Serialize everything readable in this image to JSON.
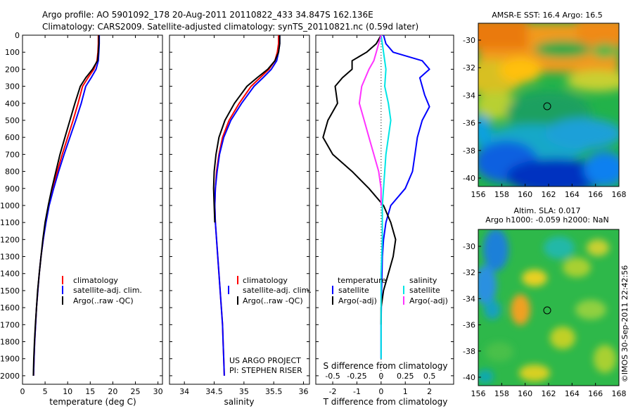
{
  "header": {
    "line1": "Argo profile: AO 5901092_178 20-Aug-2011 20110822_433 34.847S 162.136E",
    "line2": "Climatology: CARS2009. Satellite-adjusted climatology: synTS_20110821.nc (0.59d later)"
  },
  "colors": {
    "climatology": "#ff0000",
    "satellite": "#0000ff",
    "argo": "#000000",
    "salinity_sat": "#00e5e5",
    "salinity_argo": "#ff33ff"
  },
  "chart_data": [
    {
      "type": "line",
      "panel": "temperature",
      "xlabel": "temperature (deg C)",
      "xlim": [
        0,
        31
      ],
      "xticks": [
        0,
        5,
        10,
        15,
        20,
        25,
        30
      ],
      "ylim": [
        0,
        2050
      ],
      "yticks": [
        0,
        100,
        200,
        300,
        400,
        500,
        600,
        700,
        800,
        900,
        1000,
        1100,
        1200,
        1300,
        1400,
        1500,
        1600,
        1700,
        1800,
        1900,
        2000
      ],
      "y_reversed": true,
      "legend": [
        "climatology",
        "satellite-adj. clim.",
        "Argo(..raw -QC)"
      ],
      "series": [
        {
          "name": "climatology",
          "color": "#ff0000",
          "points": [
            [
              16.8,
              0
            ],
            [
              16.8,
              50
            ],
            [
              16.7,
              100
            ],
            [
              16.5,
              150
            ],
            [
              15.8,
              200
            ],
            [
              14.5,
              250
            ],
            [
              13.3,
              300
            ],
            [
              12.3,
              400
            ],
            [
              11.2,
              500
            ],
            [
              10.0,
              600
            ],
            [
              8.8,
              700
            ],
            [
              7.7,
              800
            ],
            [
              6.7,
              900
            ],
            [
              5.8,
              1000
            ],
            [
              5.1,
              1100
            ],
            [
              4.6,
              1200
            ],
            [
              4.1,
              1300
            ],
            [
              3.7,
              1400
            ],
            [
              3.4,
              1500
            ],
            [
              3.1,
              1600
            ],
            [
              2.9,
              1700
            ],
            [
              2.7,
              1800
            ],
            [
              2.55,
              1900
            ],
            [
              2.45,
              2000
            ]
          ]
        },
        {
          "name": "satellite-adj. clim.",
          "color": "#0000ff",
          "points": [
            [
              17.0,
              0
            ],
            [
              17.0,
              50
            ],
            [
              16.9,
              100
            ],
            [
              16.8,
              150
            ],
            [
              16.3,
              200
            ],
            [
              15.2,
              250
            ],
            [
              14.0,
              300
            ],
            [
              13.0,
              400
            ],
            [
              11.8,
              500
            ],
            [
              10.5,
              600
            ],
            [
              9.2,
              700
            ],
            [
              8.0,
              800
            ],
            [
              6.9,
              900
            ],
            [
              5.9,
              1000
            ],
            [
              5.2,
              1100
            ],
            [
              4.6,
              1200
            ],
            [
              4.1,
              1300
            ],
            [
              3.7,
              1400
            ],
            [
              3.4,
              1500
            ],
            [
              3.1,
              1600
            ],
            [
              2.9,
              1700
            ],
            [
              2.7,
              1800
            ],
            [
              2.55,
              1900
            ],
            [
              2.45,
              2000
            ]
          ]
        },
        {
          "name": "Argo(..raw -QC)",
          "color": "#000000",
          "points": [
            [
              16.9,
              0
            ],
            [
              16.9,
              50
            ],
            [
              16.8,
              100
            ],
            [
              16.6,
              150
            ],
            [
              15.5,
              200
            ],
            [
              14.0,
              250
            ],
            [
              12.8,
              300
            ],
            [
              11.6,
              400
            ],
            [
              10.5,
              500
            ],
            [
              9.4,
              600
            ],
            [
              8.3,
              700
            ],
            [
              7.4,
              800
            ],
            [
              6.5,
              900
            ],
            [
              5.7,
              1000
            ],
            [
              5.0,
              1100
            ],
            [
              4.5,
              1200
            ],
            [
              4.1,
              1300
            ],
            [
              3.7,
              1400
            ],
            [
              3.35,
              1500
            ],
            [
              3.1,
              1600
            ],
            [
              2.85,
              1700
            ],
            [
              2.65,
              1800
            ],
            [
              2.5,
              1900
            ],
            [
              2.4,
              2000
            ]
          ]
        }
      ]
    },
    {
      "type": "line",
      "panel": "salinity",
      "xlabel": "salinity",
      "xlim": [
        33.75,
        36.1
      ],
      "xticks": [
        34,
        34.5,
        35,
        35.5,
        36
      ],
      "ylim": [
        0,
        2050
      ],
      "y_reversed": true,
      "legend": [
        "climatology",
        "satellite-adj. clim.",
        "Argo(..raw -QC)"
      ],
      "annotation": [
        "US ARGO PROJECT",
        "PI: STEPHEN RISER"
      ],
      "series": [
        {
          "name": "climatology",
          "color": "#ff0000",
          "points": [
            [
              35.58,
              0
            ],
            [
              35.58,
              50
            ],
            [
              35.56,
              100
            ],
            [
              35.52,
              150
            ],
            [
              35.42,
              200
            ],
            [
              35.27,
              250
            ],
            [
              35.12,
              300
            ],
            [
              34.92,
              400
            ],
            [
              34.75,
              500
            ],
            [
              34.64,
              600
            ],
            [
              34.58,
              700
            ],
            [
              34.54,
              800
            ],
            [
              34.52,
              900
            ],
            [
              34.51,
              1000
            ],
            [
              34.52,
              1100
            ],
            [
              34.54,
              1200
            ],
            [
              34.56,
              1300
            ],
            [
              34.58,
              1400
            ],
            [
              34.6,
              1500
            ],
            [
              34.62,
              1600
            ],
            [
              34.64,
              1700
            ],
            [
              34.65,
              1800
            ],
            [
              34.66,
              1900
            ],
            [
              34.67,
              2000
            ]
          ]
        },
        {
          "name": "satellite-adj. clim.",
          "color": "#0000ff",
          "points": [
            [
              35.6,
              0
            ],
            [
              35.6,
              50
            ],
            [
              35.58,
              100
            ],
            [
              35.55,
              150
            ],
            [
              35.46,
              200
            ],
            [
              35.32,
              250
            ],
            [
              35.17,
              300
            ],
            [
              34.96,
              400
            ],
            [
              34.78,
              500
            ],
            [
              34.66,
              600
            ],
            [
              34.59,
              700
            ],
            [
              34.55,
              800
            ],
            [
              34.52,
              900
            ],
            [
              34.51,
              1000
            ],
            [
              34.52,
              1100
            ],
            [
              34.54,
              1200
            ],
            [
              34.56,
              1300
            ],
            [
              34.58,
              1400
            ],
            [
              34.6,
              1500
            ],
            [
              34.62,
              1600
            ],
            [
              34.64,
              1700
            ],
            [
              34.65,
              1800
            ],
            [
              34.66,
              1900
            ],
            [
              34.67,
              2000
            ]
          ]
        },
        {
          "name": "Argo(..raw -QC)",
          "color": "#000000",
          "points": [
            [
              35.6,
              0
            ],
            [
              35.6,
              50
            ],
            [
              35.58,
              100
            ],
            [
              35.52,
              150
            ],
            [
              35.4,
              200
            ],
            [
              35.22,
              250
            ],
            [
              35.05,
              300
            ],
            [
              34.84,
              400
            ],
            [
              34.68,
              500
            ],
            [
              34.58,
              600
            ],
            [
              34.53,
              700
            ],
            [
              34.5,
              800
            ],
            [
              34.49,
              900
            ],
            [
              34.5,
              1000
            ],
            [
              34.51,
              1100
            ]
          ]
        }
      ]
    },
    {
      "type": "line",
      "panel": "differences",
      "xlabel_top": "S difference from climatology",
      "xlabel": "T difference from climatology",
      "xlim": [
        -2.7,
        3.0
      ],
      "xticks": [
        -2,
        -1,
        0,
        1,
        2
      ],
      "sticks_labels": [
        "-0.5",
        "-0.25",
        "0",
        "0.25",
        "0.5"
      ],
      "sticks_values": [
        -2,
        -1,
        0,
        1,
        2
      ],
      "ylim": [
        0,
        2050
      ],
      "y_reversed": true,
      "legend": {
        "temperature_title": "temperature",
        "salinity_title": "salinity",
        "items": [
          "satellite",
          "Argo(-adj)",
          "satellite",
          "Argo(-adj)"
        ]
      },
      "series": [
        {
          "name": "T satellite",
          "color": "#0000ff",
          "points": [
            [
              0.1,
              0
            ],
            [
              0.2,
              50
            ],
            [
              0.5,
              100
            ],
            [
              1.7,
              150
            ],
            [
              2.0,
              200
            ],
            [
              1.6,
              250
            ],
            [
              1.8,
              350
            ],
            [
              2.0,
              420
            ],
            [
              1.7,
              500
            ],
            [
              1.5,
              600
            ],
            [
              1.4,
              700
            ],
            [
              1.3,
              800
            ],
            [
              1.0,
              900
            ],
            [
              0.4,
              1000
            ],
            [
              0.2,
              1100
            ],
            [
              0.1,
              1200
            ],
            [
              0.05,
              1300
            ],
            [
              0.02,
              1500
            ],
            [
              0.0,
              1700
            ],
            [
              0.0,
              1900
            ]
          ]
        },
        {
          "name": "T Argo(-adj)",
          "color": "#000000",
          "points": [
            [
              0.0,
              0
            ],
            [
              -0.2,
              50
            ],
            [
              -0.6,
              100
            ],
            [
              -1.2,
              150
            ],
            [
              -1.2,
              200
            ],
            [
              -1.6,
              250
            ],
            [
              -1.9,
              300
            ],
            [
              -1.8,
              400
            ],
            [
              -2.2,
              500
            ],
            [
              -2.4,
              600
            ],
            [
              -2.0,
              700
            ],
            [
              -1.2,
              800
            ],
            [
              -0.5,
              900
            ],
            [
              0.1,
              1000
            ],
            [
              0.4,
              1100
            ],
            [
              0.6,
              1200
            ],
            [
              0.5,
              1300
            ],
            [
              0.3,
              1400
            ],
            [
              0.1,
              1500
            ],
            [
              0.0,
              1600
            ],
            [
              0.0,
              1700
            ]
          ]
        },
        {
          "name": "S satellite",
          "color": "#00e5e5",
          "points": [
            [
              0.0,
              0
            ],
            [
              0.05,
              50
            ],
            [
              0.1,
              100
            ],
            [
              0.15,
              150
            ],
            [
              0.2,
              200
            ],
            [
              0.15,
              300
            ],
            [
              0.3,
              400
            ],
            [
              0.4,
              500
            ],
            [
              0.3,
              600
            ],
            [
              0.2,
              700
            ],
            [
              0.15,
              800
            ],
            [
              0.1,
              900
            ],
            [
              0.05,
              1000
            ],
            [
              0.05,
              1200
            ],
            [
              0.0,
              1400
            ],
            [
              0.0,
              1700
            ],
            [
              0.0,
              1900
            ]
          ]
        },
        {
          "name": "S Argo(-adj)",
          "color": "#ff33ff",
          "points": [
            [
              0.0,
              0
            ],
            [
              -0.1,
              50
            ],
            [
              -0.2,
              100
            ],
            [
              -0.3,
              150
            ],
            [
              -0.5,
              200
            ],
            [
              -0.8,
              300
            ],
            [
              -0.9,
              400
            ],
            [
              -0.7,
              500
            ],
            [
              -0.5,
              600
            ],
            [
              -0.3,
              700
            ],
            [
              -0.1,
              800
            ],
            [
              0.0,
              900
            ],
            [
              0.0,
              1000
            ]
          ]
        }
      ]
    }
  ],
  "maps": {
    "top": {
      "title": "AMSR-E SST: 16.4  Argo: 16.5",
      "xticks": [
        "156",
        "158",
        "160",
        "162",
        "164",
        "166",
        "168"
      ],
      "yticks": [
        "-30",
        "-32",
        "-34",
        "-36",
        "-38",
        "-40"
      ]
    },
    "bottom": {
      "title_line1": "Altim. SLA: 0.017",
      "title_line2": "Argo h1000: -0.059 h2000: NaN",
      "xticks": [
        "156",
        "158",
        "160",
        "162",
        "164",
        "166",
        "168"
      ],
      "yticks": [
        "-30",
        "-32",
        "-34",
        "-36",
        "-38",
        "-40"
      ]
    }
  },
  "footer": {
    "credit": "©IMOS 30-Sep-2011 22:42:56"
  }
}
